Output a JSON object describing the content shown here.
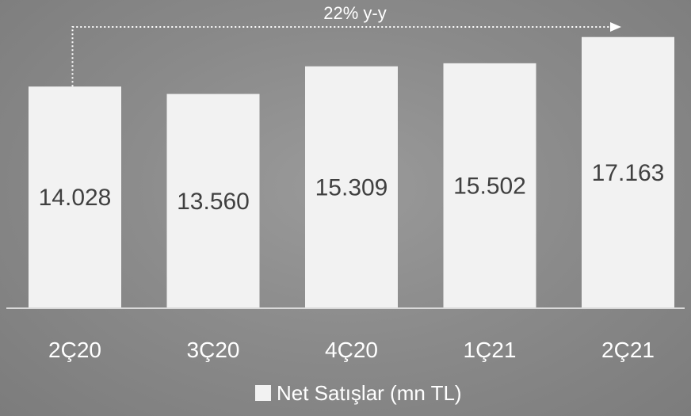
{
  "chart_data": {
    "type": "bar",
    "categories": [
      "2Ç20",
      "3Ç20",
      "4Ç20",
      "1Ç21",
      "2Ç21"
    ],
    "series": [
      {
        "name": "Net Satışlar (mn TL)",
        "values": [
          14028,
          13560,
          15309,
          15502,
          17163
        ]
      }
    ],
    "value_labels": [
      "14.028",
      "13.560",
      "15.309",
      "15.502",
      "17.163"
    ],
    "ylim": [
      0,
      17500
    ],
    "grid": false,
    "legend_position": "bottom",
    "annotation": {
      "text": "22% y-y",
      "from": "2Ç20",
      "to": "2Ç21"
    }
  },
  "colors": {
    "bar": "#f2f2f2",
    "value_text": "#404040",
    "axis": "#d9d9d9",
    "annotation": "#ffffff"
  }
}
